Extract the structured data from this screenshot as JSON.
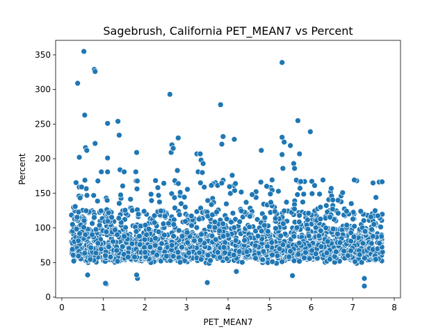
{
  "chart_data": {
    "type": "scatter",
    "title": "Sagebrush, California PET_MEAN7 vs Percent",
    "xlabel": "PET_MEAN7",
    "ylabel": "Percent",
    "xlim": [
      -0.15,
      8.15
    ],
    "ylim": [
      -1,
      371
    ],
    "xticks": [
      "0",
      "1",
      "2",
      "3",
      "4",
      "5",
      "6",
      "7",
      "8"
    ],
    "yticks": [
      "0",
      "50",
      "100",
      "150",
      "200",
      "250",
      "300",
      "350"
    ],
    "grid": false,
    "marker_color": "#1f77b4",
    "marker_edge": "#ffffff",
    "outliers": [
      [
        0.38,
        309
      ],
      [
        0.53,
        355
      ],
      [
        0.55,
        263
      ],
      [
        0.57,
        216
      ],
      [
        0.6,
        212
      ],
      [
        0.42,
        202
      ],
      [
        0.78,
        329
      ],
      [
        0.8,
        326
      ],
      [
        0.8,
        222
      ],
      [
        0.95,
        181
      ],
      [
        1.1,
        251
      ],
      [
        1.1,
        201
      ],
      [
        1.1,
        181
      ],
      [
        1.35,
        254
      ],
      [
        1.38,
        234
      ],
      [
        1.4,
        184
      ],
      [
        1.5,
        181
      ],
      [
        1.8,
        209
      ],
      [
        1.78,
        181
      ],
      [
        2.6,
        293
      ],
      [
        2.63,
        209
      ],
      [
        2.65,
        220
      ],
      [
        2.68,
        215
      ],
      [
        2.8,
        230
      ],
      [
        2.78,
        183
      ],
      [
        3.25,
        207
      ],
      [
        3.28,
        181
      ],
      [
        3.33,
        207
      ],
      [
        3.35,
        198
      ],
      [
        3.4,
        193
      ],
      [
        3.38,
        180
      ],
      [
        3.82,
        278
      ],
      [
        3.85,
        221
      ],
      [
        3.88,
        232
      ],
      [
        4.15,
        228
      ],
      [
        4.1,
        176
      ],
      [
        4.8,
        212
      ],
      [
        5.3,
        339
      ],
      [
        5.3,
        231
      ],
      [
        5.3,
        206
      ],
      [
        5.32,
        186
      ],
      [
        5.35,
        224
      ],
      [
        5.5,
        219
      ],
      [
        5.58,
        193
      ],
      [
        5.6,
        186
      ],
      [
        5.68,
        255
      ],
      [
        5.72,
        207
      ],
      [
        5.75,
        167
      ],
      [
        5.98,
        239
      ],
      [
        1.07,
        19
      ],
      [
        1.05,
        20
      ],
      [
        3.5,
        21
      ],
      [
        5.55,
        31
      ],
      [
        0.62,
        32
      ],
      [
        1.82,
        27
      ],
      [
        1.8,
        32
      ],
      [
        7.28,
        16
      ],
      [
        7.28,
        27
      ],
      [
        4.2,
        37
      ]
    ]
  }
}
